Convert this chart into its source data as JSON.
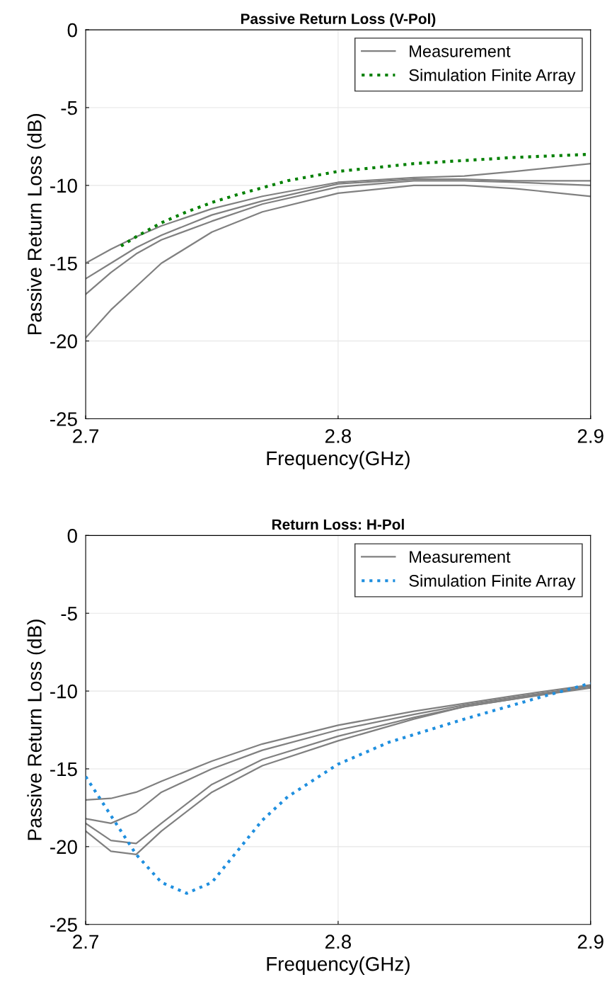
{
  "chart_data": [
    {
      "type": "line",
      "title": "Passive Return Loss (V-Pol)",
      "xlabel": "Frequency(GHz)",
      "ylabel": "Passive Return Loss (dB)",
      "xlim": [
        2.7,
        2.9
      ],
      "xticks": [
        2.7,
        2.8,
        2.9
      ],
      "ylim": [
        -25,
        0
      ],
      "yticks": [
        -25,
        -20,
        -15,
        -10,
        -5,
        0
      ],
      "grid": true,
      "legend": "top right",
      "series": [
        {
          "name": "Measurement",
          "color": "#808080",
          "x": [
            2.7,
            2.71,
            2.72,
            2.73,
            2.75,
            2.77,
            2.8,
            2.83,
            2.85,
            2.87,
            2.9
          ],
          "values": [
            -15,
            -14.1,
            -13.3,
            -12.6,
            -11.5,
            -10.7,
            -9.8,
            -9.5,
            -9.4,
            -9.1,
            -8.6
          ]
        },
        {
          "color": "#808080",
          "x": [
            2.7,
            2.71,
            2.72,
            2.73,
            2.75,
            2.77,
            2.8,
            2.83,
            2.85,
            2.87,
            2.9
          ],
          "values": [
            -17,
            -15.6,
            -14.4,
            -13.5,
            -12.3,
            -11.2,
            -10.1,
            -9.7,
            -9.7,
            -9.8,
            -10
          ]
        },
        {
          "color": "#808080",
          "x": [
            2.7,
            2.71,
            2.72,
            2.73,
            2.75,
            2.77,
            2.8,
            2.83,
            2.85,
            2.87,
            2.9
          ],
          "values": [
            -16,
            -15,
            -14,
            -13.2,
            -11.9,
            -11,
            -9.9,
            -9.6,
            -9.6,
            -9.7,
            -9.7
          ]
        },
        {
          "color": "#808080",
          "x": [
            2.7,
            2.71,
            2.72,
            2.73,
            2.75,
            2.77,
            2.8,
            2.83,
            2.85,
            2.87,
            2.9
          ],
          "values": [
            -19.8,
            -18,
            -16.5,
            -15,
            -13,
            -11.7,
            -10.5,
            -10,
            -10,
            -10.2,
            -10.7
          ]
        },
        {
          "name": "Simulation Finite Array",
          "color": "#008000",
          "line_style": "dotted",
          "x": [
            2.714,
            2.72,
            2.73,
            2.74,
            2.75,
            2.76,
            2.78,
            2.8,
            2.83,
            2.85,
            2.87,
            2.9
          ],
          "values": [
            -13.9,
            -13.3,
            -12.4,
            -11.7,
            -11.1,
            -10.6,
            -9.7,
            -9.1,
            -8.6,
            -8.4,
            -8.2,
            -8.0
          ]
        }
      ]
    },
    {
      "type": "line",
      "title": "Return Loss: H-Pol",
      "xlabel": "Frequency(GHz)",
      "ylabel": "Passive Return Loss (dB)",
      "xlim": [
        2.7,
        2.9
      ],
      "xticks": [
        2.7,
        2.8,
        2.9
      ],
      "ylim": [
        -25,
        0
      ],
      "yticks": [
        -25,
        -20,
        -15,
        -10,
        -5,
        0
      ],
      "grid": true,
      "legend": "top right",
      "series": [
        {
          "name": "Measurement",
          "color": "#808080",
          "x": [
            2.7,
            2.71,
            2.72,
            2.73,
            2.75,
            2.77,
            2.8,
            2.83,
            2.85,
            2.87,
            2.9
          ],
          "values": [
            -17,
            -16.9,
            -16.5,
            -15.8,
            -14.5,
            -13.4,
            -12.2,
            -11.3,
            -10.8,
            -10.3,
            -9.6
          ]
        },
        {
          "color": "#808080",
          "x": [
            2.7,
            2.71,
            2.72,
            2.73,
            2.75,
            2.77,
            2.8,
            2.83,
            2.85,
            2.87,
            2.9
          ],
          "values": [
            -18.2,
            -18.5,
            -17.8,
            -16.5,
            -15,
            -13.8,
            -12.5,
            -11.5,
            -10.9,
            -10.4,
            -9.7
          ]
        },
        {
          "color": "#808080",
          "x": [
            2.7,
            2.71,
            2.72,
            2.73,
            2.75,
            2.77,
            2.8,
            2.83,
            2.85,
            2.87,
            2.9
          ],
          "values": [
            -18.5,
            -19.6,
            -19.8,
            -18.5,
            -16,
            -14.4,
            -12.9,
            -11.7,
            -11,
            -10.5,
            -9.7
          ]
        },
        {
          "color": "#808080",
          "x": [
            2.7,
            2.71,
            2.72,
            2.73,
            2.75,
            2.77,
            2.8,
            2.83,
            2.85,
            2.87,
            2.9
          ],
          "values": [
            -19,
            -20.3,
            -20.5,
            -19,
            -16.5,
            -14.8,
            -13.2,
            -11.8,
            -11,
            -10.5,
            -9.8
          ]
        },
        {
          "name": "Simulation Finite Array",
          "color": "#1f8fdf",
          "line_style": "dotted",
          "x": [
            2.7,
            2.71,
            2.72,
            2.73,
            2.74,
            2.75,
            2.76,
            2.77,
            2.78,
            2.8,
            2.82,
            2.85,
            2.88,
            2.9
          ],
          "values": [
            -15.5,
            -18,
            -20.5,
            -22.3,
            -23,
            -22.3,
            -20.3,
            -18.3,
            -16.8,
            -14.7,
            -13.3,
            -11.8,
            -10.4,
            -9.5
          ]
        }
      ]
    }
  ]
}
